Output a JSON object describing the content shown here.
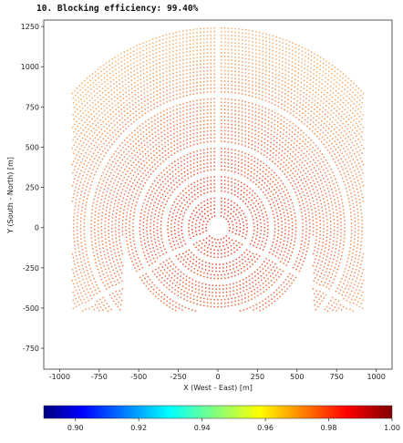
{
  "title": "10. Blocking efficiency: 99.40%",
  "chart_data": {
    "type": "scatter",
    "title": "10. Blocking efficiency: 99.40%",
    "xlabel": "X (West - East) [m]",
    "ylabel": "Y (South - North) [m]",
    "xlim": [
      -1100,
      1100
    ],
    "ylim": [
      -880,
      1290
    ],
    "xticks": [
      -1000,
      -750,
      -500,
      -250,
      0,
      250,
      500,
      750,
      1000
    ],
    "yticks": [
      1250,
      1000,
      750,
      500,
      250,
      0,
      -250,
      -500,
      -750
    ],
    "colorbar": {
      "min": 0.89,
      "max": 1.0,
      "ticks": [
        0.9,
        0.92,
        0.94,
        0.96,
        0.98,
        1.0
      ],
      "tick_labels": [
        "0.90",
        "0.92",
        "0.94",
        "0.96",
        "0.98",
        "1.00"
      ],
      "colormap": "jet"
    },
    "field": {
      "tower_exclusion_radius_m": 65,
      "outer_radius_north_m": 1260,
      "outer_radius_south_m": 520,
      "x_extent_m": [
        -920,
        920
      ],
      "sector_gap_azimuths_deg": [
        0,
        120,
        240
      ],
      "ring_gaps_m": [
        215,
        345,
        520,
        820
      ],
      "dominant_value_range": [
        0.98,
        1.0
      ]
    }
  }
}
